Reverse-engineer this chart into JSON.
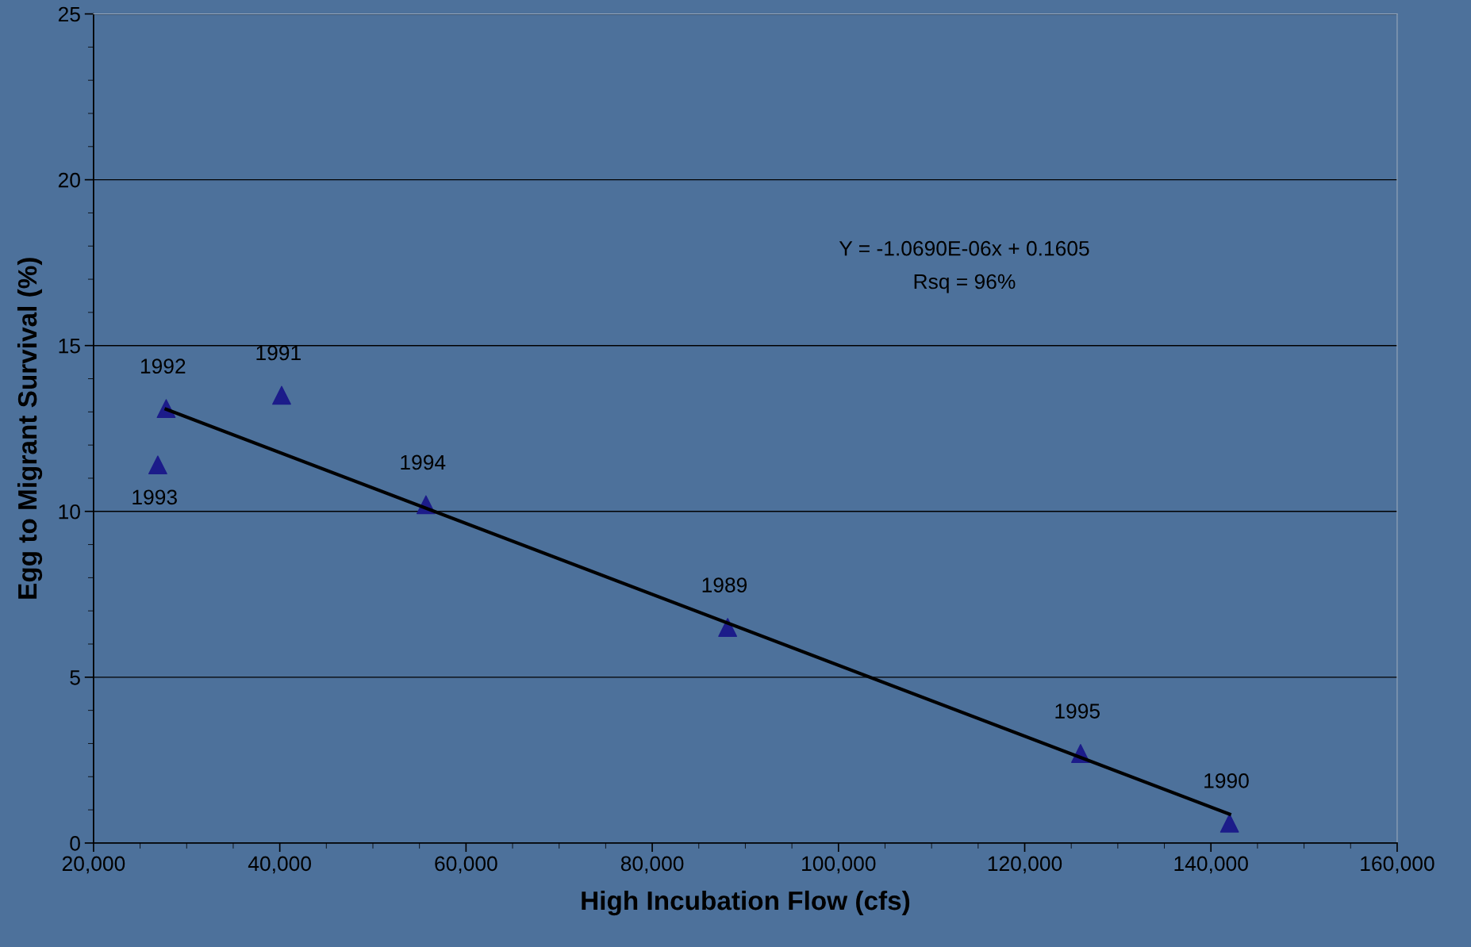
{
  "chart_data": {
    "type": "scatter",
    "xlabel": "High Incubation Flow (cfs)",
    "ylabel": "Egg to Migrant Survival (%)",
    "xlim": [
      20000,
      160000
    ],
    "xticks": [
      {
        "value": 20000,
        "label": "20,000"
      },
      {
        "value": 40000,
        "label": "40,000"
      },
      {
        "value": 60000,
        "label": "60,000"
      },
      {
        "value": 80000,
        "label": "80,000"
      },
      {
        "value": 100000,
        "label": "100,000"
      },
      {
        "value": 120000,
        "label": "120,000"
      },
      {
        "value": 140000,
        "label": "140,000"
      },
      {
        "value": 160000,
        "label": "160,000"
      }
    ],
    "ylim": [
      0,
      25
    ],
    "yticks": [
      0,
      5,
      10,
      15,
      20,
      25
    ],
    "grid": "y",
    "series": [
      {
        "color": "#1c1c8a",
        "marker": "triangle",
        "x": [
          27800,
          26900,
          40200,
          55700,
          88100,
          126000,
          142000
        ],
        "values": [
          13.1,
          11.4,
          13.5,
          10.2,
          6.5,
          2.7,
          0.6
        ]
      },
      {
        "type": "line",
        "color": "#000000",
        "marker": "none",
        "line_style": "solid",
        "x": [
          27800,
          142000
        ],
        "values": [
          13.08,
          0.87
        ]
      }
    ],
    "annotations": [
      {
        "text": "1992",
        "x": 27800,
        "y": 13.1
      },
      {
        "text": "1993",
        "x": 26900,
        "y": 11.4
      },
      {
        "text": "1991",
        "x": 40200,
        "y": 13.5
      },
      {
        "text": "1994",
        "x": 55700,
        "y": 10.2
      },
      {
        "text": "1989",
        "x": 88100,
        "y": 6.5
      },
      {
        "text": "1995",
        "x": 126000,
        "y": 2.7
      },
      {
        "text": "1990",
        "x": 142000,
        "y": 0.6
      },
      "Y = -1.0690E-06x + 0.1605",
      "Rsq = 96%"
    ]
  }
}
